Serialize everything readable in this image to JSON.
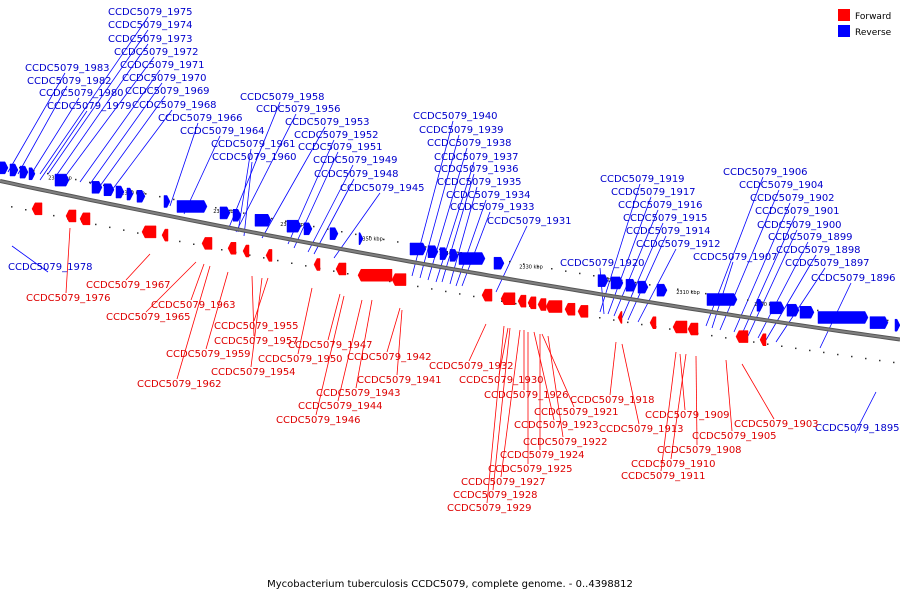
{
  "caption": "Mycobacterium tuberculosis CCDC5079, complete genome. - 0..4398812",
  "legend": [
    {
      "label": "Forward",
      "color": "#ff0000"
    },
    {
      "label": "Reverse",
      "color": "#0000ff"
    }
  ],
  "colors": {
    "forward": "#ff0000",
    "reverse": "#0000ff",
    "forward_label": "#dd0000",
    "reverse_label": "#0000cc",
    "backbone": "#808080"
  },
  "ticks": [
    "2390 kbp",
    "2380 kbp",
    "2370 kbp",
    "2360 kbp",
    "2350 kbp",
    "2340 kbp",
    "2330 kbp",
    "2320 kbp",
    "2310 kbp",
    "2300 kbp",
    "2290 kbp"
  ],
  "reverse_genes": [
    "CCDC5079_1975",
    "CCDC5079_1974",
    "CCDC5079_1973",
    "CCDC5079_1972",
    "CCDC5079_1971",
    "CCDC5079_1970",
    "CCDC5079_1969",
    "CCDC5079_1968",
    "CCDC5079_1983",
    "CCDC5079_1982",
    "CCDC5079_1980",
    "CCDC5079_1979",
    "CCDC5079_1966",
    "CCDC5079_1964",
    "CCDC5079_1958",
    "CCDC5079_1956",
    "CCDC5079_1953",
    "CCDC5079_1952",
    "CCDC5079_1951",
    "CCDC5079_1961",
    "CCDC5079_1960",
    "CCDC5079_1949",
    "CCDC5079_1948",
    "CCDC5079_1945",
    "CCDC5079_1940",
    "CCDC5079_1939",
    "CCDC5079_1938",
    "CCDC5079_1937",
    "CCDC5079_1936",
    "CCDC5079_1935",
    "CCDC5079_1934",
    "CCDC5079_1933",
    "CCDC5079_1931",
    "CCDC5079_1919",
    "CCDC5079_1917",
    "CCDC5079_1916",
    "CCDC5079_1915",
    "CCDC5079_1914",
    "CCDC5079_1912",
    "CCDC5079_1920",
    "CCDC5079_1906",
    "CCDC5079_1904",
    "CCDC5079_1902",
    "CCDC5079_1901",
    "CCDC5079_1900",
    "CCDC5079_1899",
    "CCDC5079_1898",
    "CCDC5079_1907",
    "CCDC5079_1897",
    "CCDC5079_1896",
    "CCDC5079_1978",
    "CCDC5079_1895"
  ],
  "forward_genes": [
    "CCDC5079_1976",
    "CCDC5079_1967",
    "CCDC5079_1963",
    "CCDC5079_1965",
    "CCDC5079_1955",
    "CCDC5079_1957",
    "CCDC5079_1959",
    "CCDC5079_1950",
    "CCDC5079_1954",
    "CCDC5079_1962",
    "CCDC5079_1947",
    "CCDC5079_1942",
    "CCDC5079_1941",
    "CCDC5079_1943",
    "CCDC5079_1944",
    "CCDC5079_1946",
    "CCDC5079_1932",
    "CCDC5079_1930",
    "CCDC5079_1926",
    "CCDC5079_1918",
    "CCDC5079_1921",
    "CCDC5079_1923",
    "CCDC5079_1913",
    "CCDC5079_1909",
    "CCDC5079_1922",
    "CCDC5079_1924",
    "CCDC5079_1925",
    "CCDC5079_1927",
    "CCDC5079_1928",
    "CCDC5079_1929",
    "CCDC5079_1903",
    "CCDC5079_1905",
    "CCDC5079_1908",
    "CCDC5079_1910",
    "CCDC5079_1911"
  ]
}
